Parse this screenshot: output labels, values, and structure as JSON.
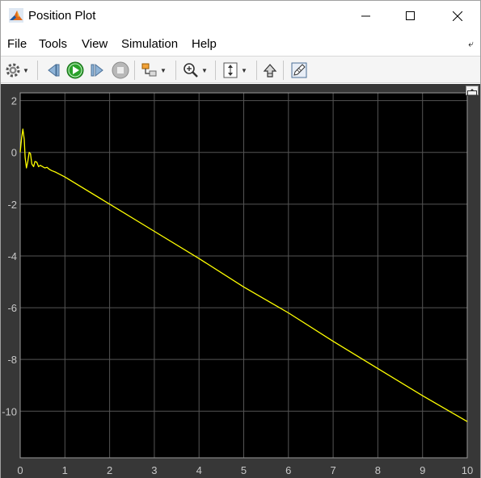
{
  "window": {
    "title": "Position Plot"
  },
  "menu": {
    "items": [
      "File",
      "Tools",
      "View",
      "Simulation",
      "Help"
    ]
  },
  "icons": {
    "app": "matlab-peaks-icon",
    "settings": "gear-icon",
    "step_back": "step-back-icon",
    "run": "run-icon",
    "step_forward": "step-forward-icon",
    "stop": "stop-icon",
    "highlight": "highlight-model-icon",
    "zoom": "zoom-in-icon",
    "autoscale": "autoscale-icon",
    "pin": "keep-on-top-icon",
    "edit": "edit-style-icon"
  },
  "colors": {
    "plot_bg": "#000000",
    "figure_bg": "#373737",
    "grid": "#555555",
    "trace": "#ffff00",
    "run_green": "#2aa12a"
  },
  "chart_data": {
    "type": "line",
    "title": "",
    "xlabel": "",
    "ylabel": "",
    "xlim": [
      0,
      10
    ],
    "ylim": [
      -11.8,
      2.3
    ],
    "xticks": [
      0,
      1,
      2,
      3,
      4,
      5,
      6,
      7,
      8,
      9,
      10
    ],
    "yticks": [
      2,
      0,
      -2,
      -4,
      -6,
      -8,
      -10
    ],
    "grid": true,
    "series": [
      {
        "color": "#ffff00",
        "x": [
          0,
          0.03,
          0.06,
          0.09,
          0.11,
          0.14,
          0.17,
          0.2,
          0.23,
          0.26,
          0.3,
          0.33,
          0.37,
          0.41,
          0.45,
          0.5,
          0.55,
          0.6,
          0.65,
          0.7,
          0.8,
          1,
          2,
          3,
          4,
          5,
          6,
          7,
          8,
          9,
          10
        ],
        "y": [
          0,
          0.55,
          0.9,
          0.5,
          -0.2,
          -0.6,
          -0.35,
          0.0,
          -0.05,
          -0.45,
          -0.55,
          -0.35,
          -0.38,
          -0.55,
          -0.5,
          -0.55,
          -0.6,
          -0.58,
          -0.65,
          -0.7,
          -0.77,
          -0.95,
          -2.0,
          -3.05,
          -4.1,
          -5.2,
          -6.2,
          -7.3,
          -8.35,
          -9.4,
          -10.4
        ]
      }
    ]
  }
}
